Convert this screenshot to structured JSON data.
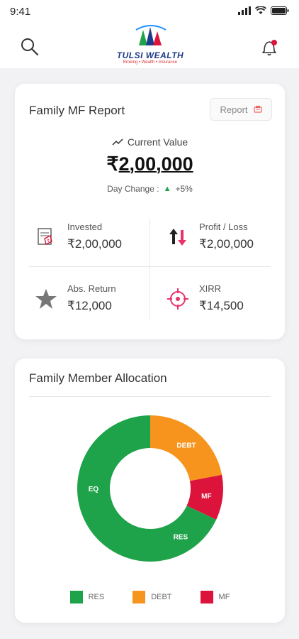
{
  "status": {
    "time": "9:41"
  },
  "header": {
    "logo_text": "TULSI WEALTH",
    "logo_tag": "Broking • Wealth • Insurance"
  },
  "report": {
    "title": "Family MF Report",
    "report_button": "Report",
    "current_value_label": "Current Value",
    "current_value_symbol": "₹",
    "current_value": "2,00,000",
    "day_change_label": "Day Change :",
    "day_change_value": "+5%",
    "stats": {
      "invested": {
        "label": "Invested",
        "value": "₹2,00,000"
      },
      "profit_loss": {
        "label": "Profit / Loss",
        "value": "₹2,00,000"
      },
      "abs_return": {
        "label": "Abs. Return",
        "value": "₹12,000"
      },
      "xirr": {
        "label": "XIRR",
        "value": "₹14,500"
      }
    }
  },
  "allocation": {
    "title": "Family Member Allocation",
    "legend": [
      {
        "label": "RES",
        "color": "#1fa34a"
      },
      {
        "label": "DEBT",
        "color": "#f7941d"
      },
      {
        "label": "MF",
        "color": "#dc143c"
      }
    ]
  },
  "chart_data": {
    "type": "pie",
    "title": "Family Member Allocation",
    "slices": [
      {
        "label": "DEBT",
        "value": 22,
        "color": "#f7941d"
      },
      {
        "label": "MF",
        "value": 10,
        "color": "#dc143c"
      },
      {
        "label": "RES",
        "value": 18,
        "color": "#1fa34a"
      },
      {
        "label": "EQ",
        "value": 50,
        "color": "#1fa34a"
      }
    ],
    "legend": [
      "RES",
      "DEBT",
      "MF"
    ],
    "legend_position": "bottom",
    "donut": true
  }
}
